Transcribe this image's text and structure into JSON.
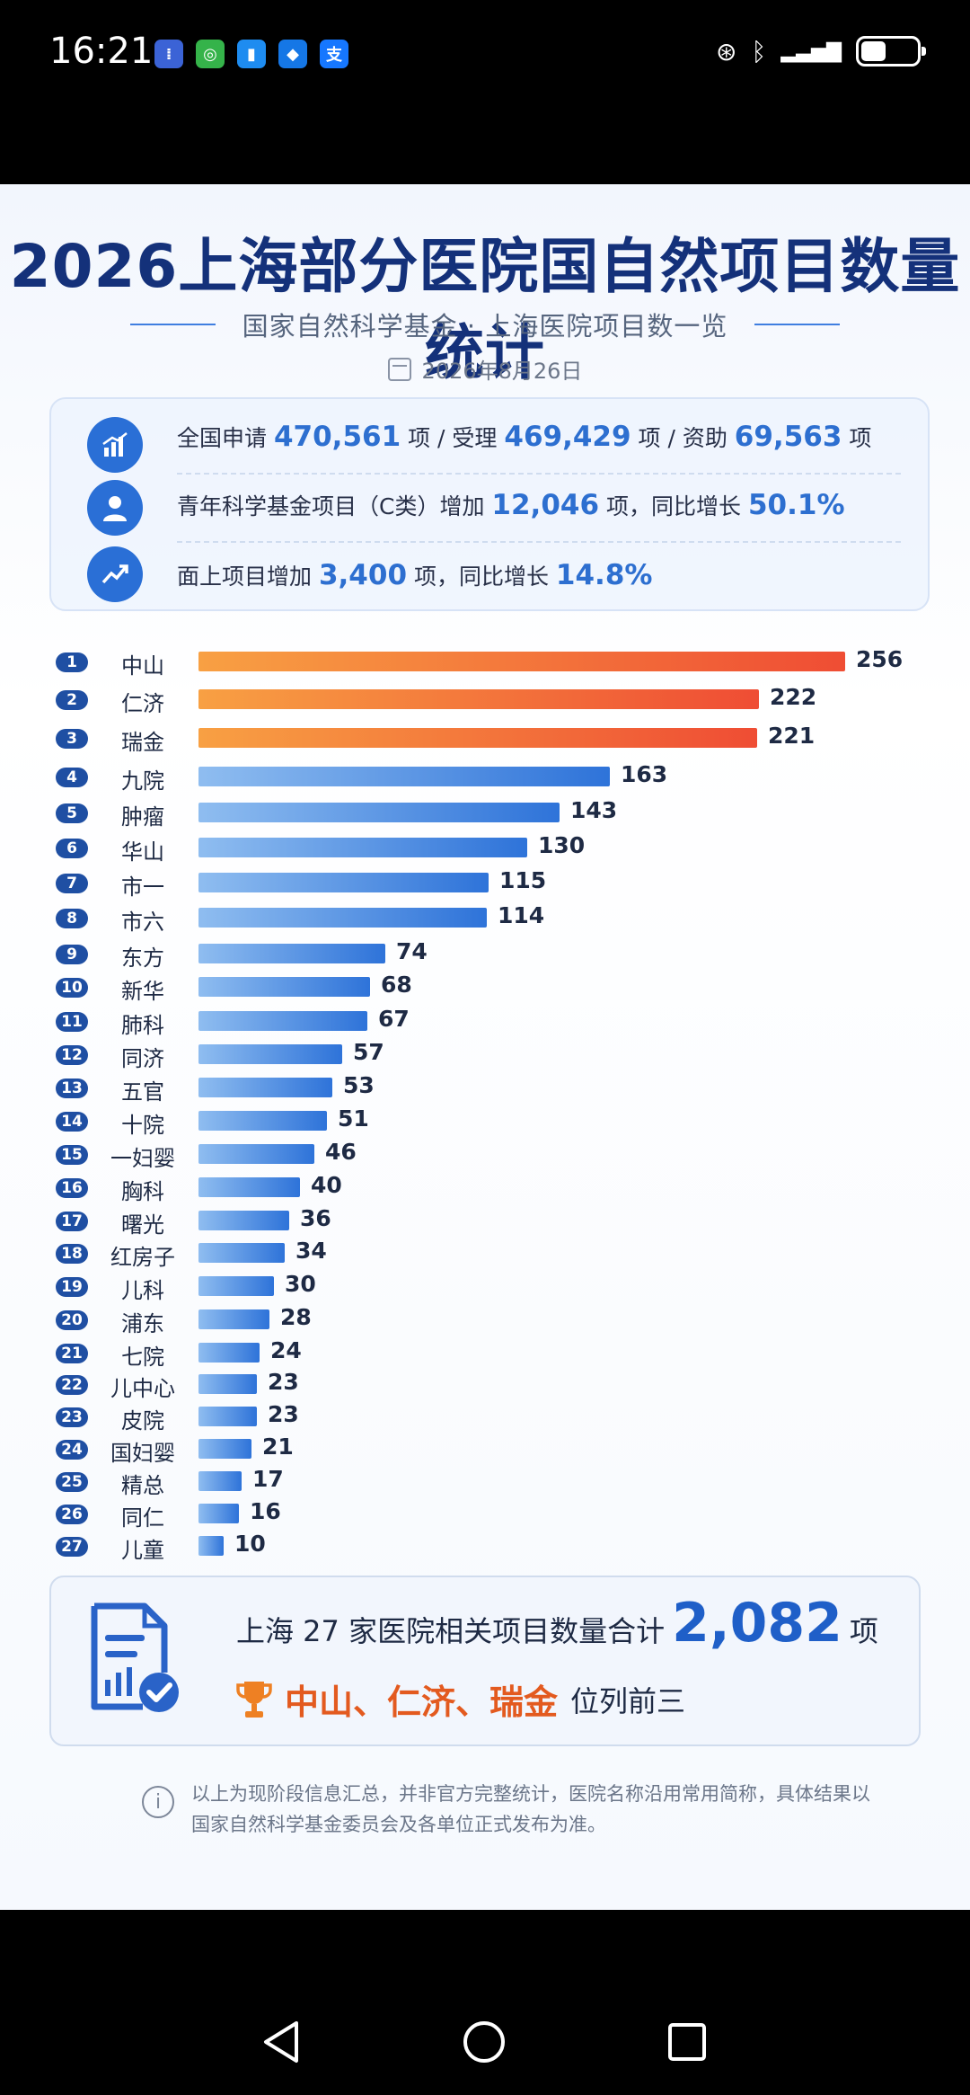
{
  "status_bar": {
    "time": "16:21",
    "apps": [
      {
        "icon": "jira-app-icon",
        "glyph": "⁞",
        "color": "#3b63d6"
      },
      {
        "icon": "chat-app-icon",
        "glyph": "◎",
        "color": "#35b34a"
      },
      {
        "icon": "message-app-icon",
        "glyph": "▮",
        "color": "#1e8cf0"
      },
      {
        "icon": "browser-app-icon",
        "glyph": "◆",
        "color": "#1577e6"
      },
      {
        "icon": "alipay-app-icon",
        "glyph": "支",
        "color": "#1677ff"
      }
    ],
    "battery_level": 0.45
  },
  "poster": {
    "title": "2026上海部分医院国自然项目数量统计",
    "subtitle": "国家自然科学基金 · 上海医院项目数一览",
    "date": "2026年8月26日",
    "stats": [
      {
        "icon": "bar-chart-icon",
        "parts": [
          "全国申请 ",
          "470,561",
          " 项 / 受理 ",
          "469,429",
          " 项 / 资助 ",
          "69,563",
          " 项"
        ]
      },
      {
        "icon": "person-icon",
        "parts": [
          "青年科学基金项目（C类）增加 ",
          "12,046",
          " 项，同比增长 ",
          "50.1%",
          ""
        ]
      },
      {
        "icon": "trend-up-icon",
        "parts": [
          "面上项目增加 ",
          "3,400",
          " 项，同比增长 ",
          "14.8%",
          ""
        ]
      }
    ],
    "summary": {
      "line1_prefix": "上海 27 家医院相关项目数量合计",
      "total": "2,082",
      "line1_suffix": "项",
      "top3": "中山、仁济、瑞金",
      "top3_suffix": "位列前三"
    },
    "note": "以上为现阶段信息汇总，并非官方完整统计，医院名称沿用常用简称，具体结果以国家自然科学基金委员会及各单位正式发布为准。"
  },
  "chart_data": {
    "type": "bar",
    "orientation": "horizontal",
    "categories": [
      "中山",
      "仁济",
      "瑞金",
      "九院",
      "肿瘤",
      "华山",
      "市一",
      "市六",
      "东方",
      "新华",
      "肺科",
      "同济",
      "五官",
      "十院",
      "一妇婴",
      "胸科",
      "曙光",
      "红房子",
      "儿科",
      "浦东",
      "七院",
      "儿中心",
      "皮院",
      "国妇婴",
      "精总",
      "同仁",
      "儿童"
    ],
    "ranks": [
      "1",
      "2",
      "3",
      "4",
      "5",
      "6",
      "7",
      "8",
      "9",
      "10",
      "11",
      "12",
      "13",
      "14",
      "15",
      "16",
      "17",
      "18",
      "19",
      "20",
      "21",
      "22",
      "23",
      "24",
      "25",
      "26",
      "27"
    ],
    "values": [
      256,
      222,
      221,
      163,
      143,
      130,
      115,
      114,
      74,
      68,
      67,
      57,
      53,
      51,
      46,
      40,
      36,
      34,
      30,
      28,
      24,
      23,
      23,
      21,
      17,
      16,
      10
    ],
    "value_labels": [
      "256",
      "222",
      "221",
      "163",
      "143",
      "130",
      "115",
      "114",
      "74",
      "68",
      "67",
      "57",
      "53",
      "51",
      "46",
      "40",
      "36",
      "34",
      "30",
      "28",
      "24",
      "23",
      "23",
      "21",
      "17",
      "16",
      "10"
    ],
    "colors": {
      "top3": [
        "#f8a043",
        "#ef4d34"
      ],
      "others": [
        "#8fbdf0",
        "#2e73d9"
      ]
    }
  }
}
